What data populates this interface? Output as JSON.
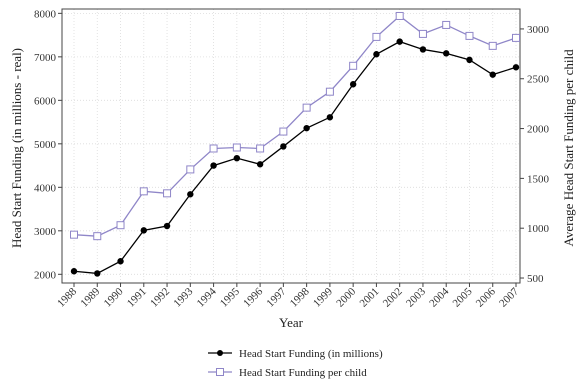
{
  "chart_data": {
    "type": "line",
    "x": [
      "1988",
      "1989",
      "1990",
      "1991",
      "1992",
      "1993",
      "1994",
      "1995",
      "1996",
      "1997",
      "1998",
      "1999",
      "2000",
      "2001",
      "2002",
      "2003",
      "2004",
      "2005",
      "2006",
      "2007"
    ],
    "xlabel": "Year",
    "ylabel_left": "Head Start Funding (in millions - real)",
    "ylabel_right": "Average Head Start Funding per child",
    "ylim_left": [
      1800,
      8100
    ],
    "yticks_left": [
      2000,
      3000,
      4000,
      5000,
      6000,
      7000,
      8000
    ],
    "ylim_right": [
      450,
      3200
    ],
    "yticks_right": [
      500,
      1000,
      1500,
      2000,
      2500,
      3000
    ],
    "grid": true,
    "legend_position": "bottom",
    "series": [
      {
        "name": "Head Start Funding (in millions)",
        "axis": "left",
        "color": "#000000",
        "marker": "filled-circle",
        "values": [
          2070,
          2020,
          2300,
          3010,
          3110,
          3840,
          4500,
          4670,
          4530,
          4940,
          5360,
          5610,
          6370,
          7060,
          7350,
          7170,
          7080,
          6930,
          6590,
          6760
        ]
      },
      {
        "name": "Head Start Funding per child",
        "axis": "right",
        "color": "#8f86c8",
        "marker": "hollow-square",
        "values": [
          935,
          920,
          1030,
          1370,
          1350,
          1590,
          1800,
          1810,
          1800,
          1970,
          2210,
          2370,
          2630,
          2920,
          3130,
          2950,
          3040,
          2930,
          2830,
          2910
        ]
      }
    ]
  }
}
